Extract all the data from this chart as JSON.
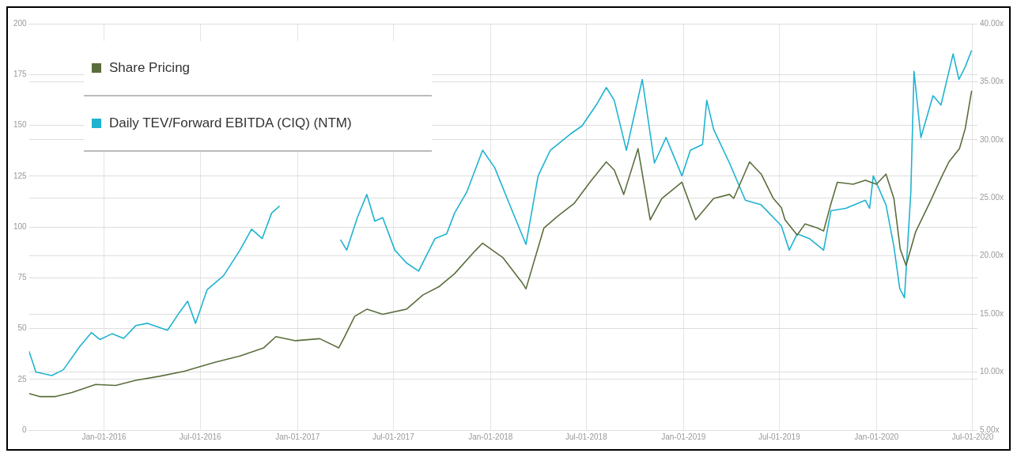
{
  "chart_data": {
    "type": "line",
    "legend": "top left",
    "grid": true,
    "marker": "none",
    "line_style": "solid",
    "xlim": [
      "2015-08-12",
      "2020-07-10"
    ],
    "xticks": [
      {
        "value": "2016-01-01",
        "label": "Jan-01-2016"
      },
      {
        "value": "2016-07-01",
        "label": "Jul-01-2016"
      },
      {
        "value": "2017-01-01",
        "label": "Jan-01-2017"
      },
      {
        "value": "2017-07-01",
        "label": "Jul-01-2017"
      },
      {
        "value": "2018-01-01",
        "label": "Jan-01-2018"
      },
      {
        "value": "2018-07-01",
        "label": "Jul-01-2018"
      },
      {
        "value": "2019-01-01",
        "label": "Jan-01-2019"
      },
      {
        "value": "2019-07-01",
        "label": "Jul-01-2019"
      },
      {
        "value": "2020-01-01",
        "label": "Jan-01-2020"
      },
      {
        "value": "2020-07-01",
        "label": "Jul-01-2020"
      }
    ],
    "ylim": [
      0,
      200
    ],
    "yticks": [
      0,
      25,
      50,
      75,
      100,
      125,
      150,
      175,
      200
    ],
    "y2lim": [
      5,
      40
    ],
    "y2ticks": [
      {
        "value": 5,
        "label": "5.00x"
      },
      {
        "value": 10,
        "label": "10.00x"
      },
      {
        "value": 15,
        "label": "15.00x"
      },
      {
        "value": 20,
        "label": "20.00x"
      },
      {
        "value": 25,
        "label": "25.00x"
      },
      {
        "value": 30,
        "label": "30.00x"
      },
      {
        "value": 35,
        "label": "35.00x"
      },
      {
        "value": 40,
        "label": "40.00x"
      }
    ],
    "series": [
      {
        "name": "Share Pricing",
        "color": "#5a6e3c",
        "x": [
          "2015-08-12",
          "2015-09-01",
          "2015-10-01",
          "2015-11-01",
          "2015-12-16",
          "2016-01-23",
          "2016-03-01",
          "2016-04-15",
          "2016-06-01",
          "2016-07-04",
          "2016-07-30",
          "2016-09-14",
          "2016-10-29",
          "2016-11-21",
          "2016-12-28",
          "2017-02-12",
          "2017-03-20",
          "2017-03-31",
          "2017-04-19",
          "2017-05-12",
          "2017-06-11",
          "2017-07-26",
          "2017-08-26",
          "2017-09-25",
          "2017-10-25",
          "2017-12-02",
          "2017-12-17",
          "2018-01-24",
          "2018-03-02",
          "2018-03-09",
          "2018-04-12",
          "2018-05-09",
          "2018-06-08",
          "2018-07-08",
          "2018-08-08",
          "2018-08-23",
          "2018-09-10",
          "2018-10-07",
          "2018-10-30",
          "2018-11-21",
          "2018-12-29",
          "2019-01-24",
          "2019-02-27",
          "2019-03-29",
          "2019-04-06",
          "2019-05-06",
          "2019-05-28",
          "2019-06-20",
          "2019-07-05",
          "2019-07-12",
          "2019-08-04",
          "2019-08-19",
          "2019-09-11",
          "2019-09-23",
          "2019-10-07",
          "2019-10-19",
          "2019-11-18",
          "2019-12-11",
          "2020-01-01",
          "2020-01-19",
          "2020-02-03",
          "2020-02-15",
          "2020-02-26",
          "2020-03-15",
          "2020-04-10",
          "2020-05-02",
          "2020-05-17",
          "2020-06-06",
          "2020-06-17",
          "2020-06-29"
        ],
        "values": [
          18,
          16.5,
          16.5,
          18.5,
          22.5,
          22,
          24.5,
          26.5,
          29,
          31.5,
          33.5,
          36.5,
          40.5,
          46,
          44,
          45,
          40.5,
          46,
          56,
          59.5,
          57,
          59.5,
          66.5,
          70.5,
          77,
          88,
          92,
          85,
          72.5,
          69.5,
          99.5,
          105.5,
          111.5,
          122,
          132,
          128,
          116,
          138.5,
          103.5,
          114,
          122,
          103.5,
          114,
          116,
          114,
          132,
          126,
          114,
          109.5,
          103.5,
          96,
          101.5,
          99.5,
          98,
          111.5,
          122,
          121,
          123,
          121,
          126,
          114,
          89,
          81,
          97.5,
          111.5,
          124,
          132,
          138.5,
          148.5,
          167
        ]
      },
      {
        "name": "Daily TEV/Forward EBITDA (CIQ) (NTM)",
        "color": "#1fb3d0",
        "axis": "y2",
        "x": [
          "2015-08-12",
          "2015-08-25",
          "2015-09-24",
          "2015-10-16",
          "2015-11-16",
          "2015-12-08",
          "2015-12-24",
          "2016-01-16",
          "2016-02-07",
          "2016-03-01",
          "2016-03-23",
          "2016-04-30",
          "2016-05-22",
          "2016-06-07",
          "2016-06-22",
          "2016-07-14",
          "2016-08-14",
          "2016-09-14",
          "2016-10-06",
          "2016-10-26",
          "2016-11-13",
          "2016-11-28",
          "2017-01-15",
          "2017-03-23",
          "2017-04-04",
          "2017-04-24",
          "2017-05-12",
          "2017-05-27",
          "2017-06-11",
          "2017-07-04",
          "2017-07-26",
          "2017-08-18",
          "2017-09-18",
          "2017-10-10",
          "2017-10-25",
          "2017-11-17",
          "2017-12-17",
          "2018-01-09",
          "2018-02-09",
          "2018-03-09",
          "2018-04-01",
          "2018-04-24",
          "2018-06-01",
          "2018-06-23",
          "2018-07-20",
          "2018-08-08",
          "2018-08-23",
          "2018-09-15",
          "2018-10-15",
          "2018-11-07",
          "2018-11-29",
          "2018-12-29",
          "2019-01-14",
          "2019-02-06",
          "2019-02-14",
          "2019-02-27",
          "2019-03-29",
          "2019-04-28",
          "2019-05-28",
          "2019-07-05",
          "2019-07-20",
          "2019-08-04",
          "2019-08-27",
          "2019-09-23",
          "2019-10-07",
          "2019-11-04",
          "2019-12-11",
          "2019-12-19",
          "2019-12-26",
          "2020-01-19",
          "2020-02-03",
          "2020-02-14",
          "2020-02-23",
          "2020-03-06",
          "2020-03-12",
          "2020-03-25",
          "2020-04-17",
          "2020-05-02",
          "2020-05-25",
          "2020-06-05",
          "2020-06-17",
          "2020-06-29"
        ],
        "values": [
          11.8,
          10,
          9.7,
          10.2,
          12.2,
          13.4,
          12.8,
          13.3,
          12.9,
          14,
          14.2,
          13.6,
          15.1,
          16.1,
          14.2,
          17.1,
          18.3,
          20.5,
          22.3,
          21.5,
          23.7,
          24.3,
          null,
          21.4,
          20.5,
          23.3,
          25.3,
          23,
          23.3,
          20.5,
          19.4,
          18.7,
          21.5,
          21.9,
          23.7,
          25.5,
          29.1,
          27.6,
          24.1,
          21,
          26.9,
          29.1,
          30.5,
          31.2,
          33,
          34.5,
          33.4,
          29.1,
          35.2,
          28,
          30.2,
          26.9,
          29.1,
          29.6,
          33.4,
          30.9,
          28,
          24.8,
          24.4,
          22.6,
          20.5,
          21.9,
          21.5,
          20.5,
          23.9,
          24.1,
          24.8,
          24.1,
          26.9,
          24.4,
          20.8,
          17.2,
          16.4,
          25.5,
          35.9,
          30.2,
          33.8,
          33,
          37.4,
          35.2,
          36.3,
          37.7
        ]
      }
    ]
  }
}
